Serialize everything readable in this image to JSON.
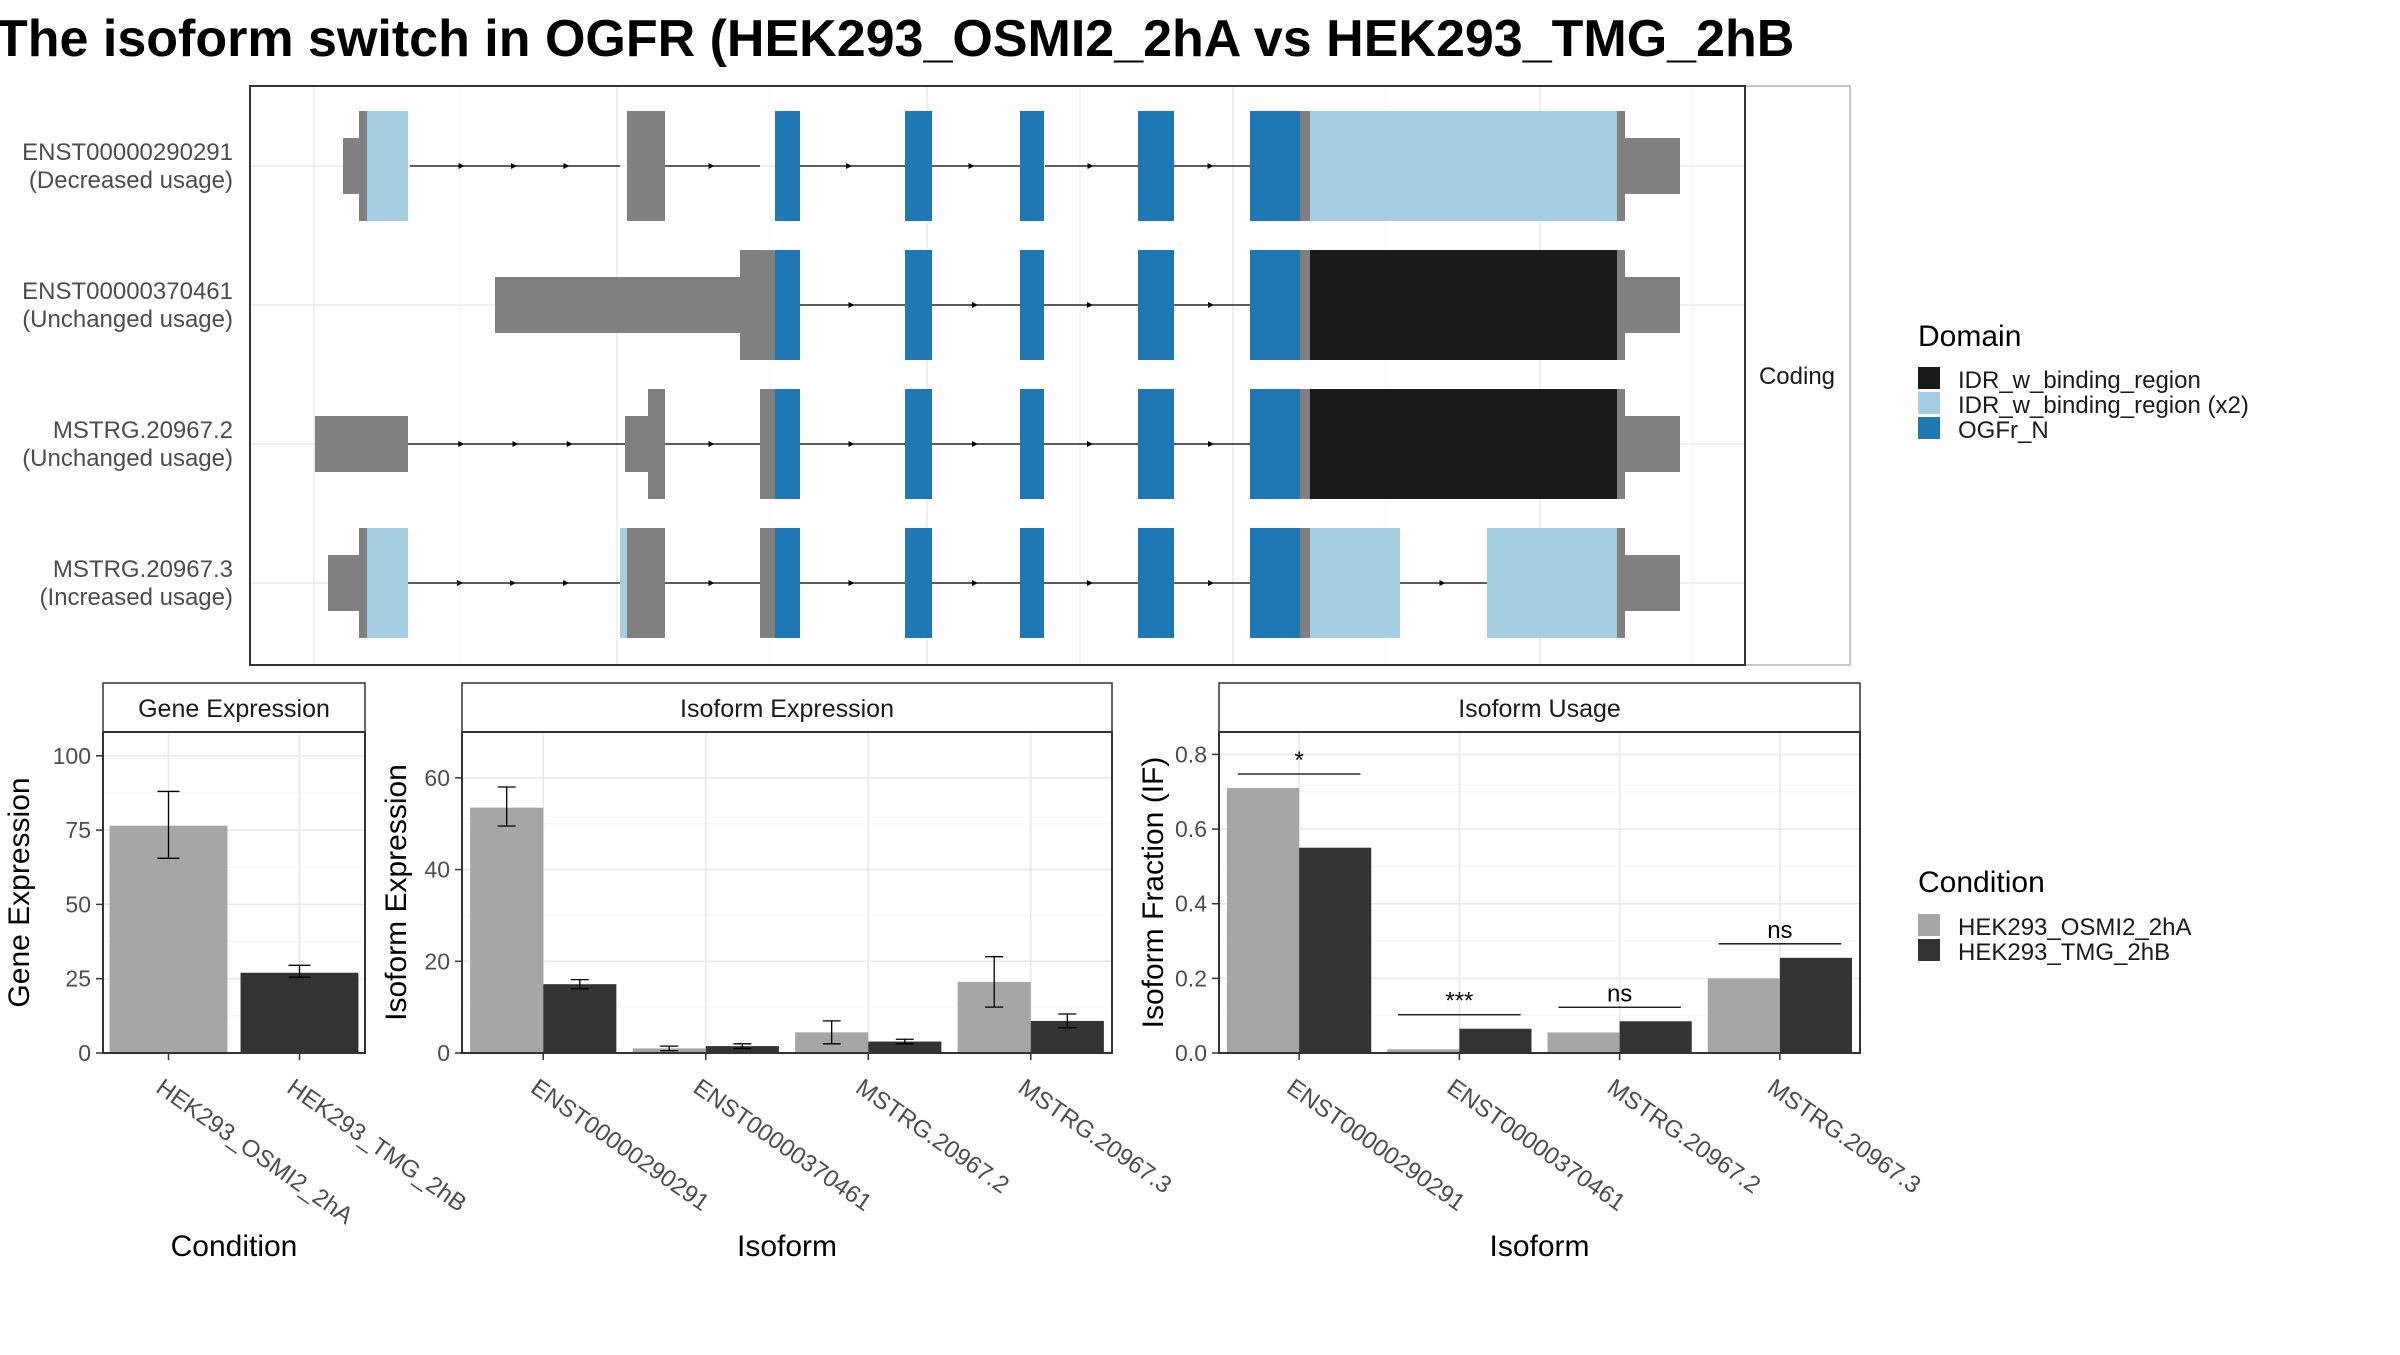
{
  "title": "The isoform switch in OGFR (HEK293_OSMI2_2hA vs HEK293_TMG_2hB",
  "colors": {
    "decreased": "#a6cee3",
    "idr": "#1a1a1a",
    "ogfr": "#1f78b4",
    "utr": "#808080",
    "cond_a": "#a6a6a6",
    "cond_b": "#333333",
    "grid": "#ebebeb",
    "strip_bg": "#ffffff",
    "panel_border": "#333333"
  },
  "structure": {
    "facet_label": "Coding",
    "transcripts": [
      {
        "id": "ENST00000290291",
        "usage": "(Decreased usage)"
      },
      {
        "id": "ENST00000370461",
        "usage": "(Unchanged usage)"
      },
      {
        "id": "MSTRG.20967.2",
        "usage": "(Unchanged usage)"
      },
      {
        "id": "MSTRG.20967.3",
        "usage": "(Increased usage)"
      }
    ]
  },
  "legend_domain": {
    "title": "Domain",
    "items": [
      {
        "label": "IDR_w_binding_region",
        "color": "#1a1a1a"
      },
      {
        "label": "IDR_w_binding_region (x2)",
        "color": "#a6cee3"
      },
      {
        "label": "OGFr_N",
        "color": "#1f78b4"
      }
    ]
  },
  "legend_condition": {
    "title": "Condition",
    "items": [
      {
        "label": "HEK293_OSMI2_2hA",
        "color": "#a6a6a6"
      },
      {
        "label": "HEK293_TMG_2hB",
        "color": "#333333"
      }
    ]
  },
  "chart_data": [
    {
      "type": "bar",
      "title": "Gene Expression",
      "xlabel": "Condition",
      "ylabel": "Gene Expression",
      "ylim": [
        0,
        108
      ],
      "yticks": [
        0,
        25,
        50,
        75,
        100
      ],
      "categories": [
        "HEK293_OSMI2_2hA",
        "HEK293_TMG_2hB"
      ],
      "values": [
        76.5,
        27.0
      ],
      "errors": [
        [
          65.5,
          88.0
        ],
        [
          25.5,
          29.5
        ]
      ]
    },
    {
      "type": "bar",
      "title": "Isoform Expression",
      "xlabel": "Isoform",
      "ylabel": "Isoform Expression",
      "ylim": [
        0,
        70
      ],
      "yticks": [
        0,
        20,
        40,
        60
      ],
      "categories": [
        "ENST00000290291",
        "ENST00000370461",
        "MSTRG.20967.2",
        "MSTRG.20967.3"
      ],
      "series": [
        {
          "name": "HEK293_OSMI2_2hA",
          "values": [
            53.5,
            1.0,
            4.5,
            15.5
          ],
          "errors": [
            [
              49.5,
              58.0
            ],
            [
              0.5,
              1.5
            ],
            [
              2.0,
              7.0
            ],
            [
              10.0,
              21.0
            ]
          ]
        },
        {
          "name": "HEK293_TMG_2hB",
          "values": [
            15.0,
            1.5,
            2.5,
            7.0
          ],
          "errors": [
            [
              14.0,
              16.0
            ],
            [
              1.0,
              2.0
            ],
            [
              2.0,
              3.0
            ],
            [
              5.5,
              8.5
            ]
          ]
        }
      ]
    },
    {
      "type": "bar",
      "title": "Isoform Usage",
      "xlabel": "Isoform",
      "ylabel": "Isoform Fraction (IF)",
      "ylim": [
        0,
        0.86
      ],
      "yticks": [
        0.0,
        0.2,
        0.4,
        0.6,
        0.8
      ],
      "categories": [
        "ENST00000290291",
        "ENST00000370461",
        "MSTRG.20967.2",
        "MSTRG.20967.3"
      ],
      "series": [
        {
          "name": "HEK293_OSMI2_2hA",
          "values": [
            0.71,
            0.01,
            0.055,
            0.2
          ]
        },
        {
          "name": "HEK293_TMG_2hB",
          "values": [
            0.55,
            0.065,
            0.085,
            0.255
          ]
        }
      ],
      "significance": [
        "*",
        "***",
        "ns",
        "ns"
      ]
    }
  ]
}
